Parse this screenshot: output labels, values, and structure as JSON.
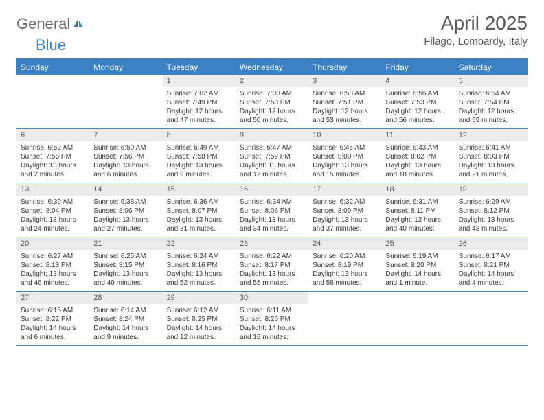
{
  "logo": {
    "text1": "General",
    "text2": "Blue"
  },
  "title": "April 2025",
  "subtitle": "Filago, Lombardy, Italy",
  "colors": {
    "header_bg": "#3b82c4",
    "header_text": "#ffffff",
    "daynum_bg": "#ececec",
    "daynum_text": "#555555",
    "body_text": "#3a3a3a",
    "title_text": "#595959",
    "logo_gray": "#6a6a6a",
    "logo_blue": "#3b82c4"
  },
  "daynames": [
    "Sunday",
    "Monday",
    "Tuesday",
    "Wednesday",
    "Thursday",
    "Friday",
    "Saturday"
  ],
  "weeks": [
    [
      null,
      null,
      {
        "num": "1",
        "sunrise": "Sunrise: 7:02 AM",
        "sunset": "Sunset: 7:49 PM",
        "day1": "Daylight: 12 hours",
        "day2": "and 47 minutes."
      },
      {
        "num": "2",
        "sunrise": "Sunrise: 7:00 AM",
        "sunset": "Sunset: 7:50 PM",
        "day1": "Daylight: 12 hours",
        "day2": "and 50 minutes."
      },
      {
        "num": "3",
        "sunrise": "Sunrise: 6:58 AM",
        "sunset": "Sunset: 7:51 PM",
        "day1": "Daylight: 12 hours",
        "day2": "and 53 minutes."
      },
      {
        "num": "4",
        "sunrise": "Sunrise: 6:56 AM",
        "sunset": "Sunset: 7:53 PM",
        "day1": "Daylight: 12 hours",
        "day2": "and 56 minutes."
      },
      {
        "num": "5",
        "sunrise": "Sunrise: 6:54 AM",
        "sunset": "Sunset: 7:54 PM",
        "day1": "Daylight: 12 hours",
        "day2": "and 59 minutes."
      }
    ],
    [
      {
        "num": "6",
        "sunrise": "Sunrise: 6:52 AM",
        "sunset": "Sunset: 7:55 PM",
        "day1": "Daylight: 13 hours",
        "day2": "and 2 minutes."
      },
      {
        "num": "7",
        "sunrise": "Sunrise: 6:50 AM",
        "sunset": "Sunset: 7:56 PM",
        "day1": "Daylight: 13 hours",
        "day2": "and 6 minutes."
      },
      {
        "num": "8",
        "sunrise": "Sunrise: 6:49 AM",
        "sunset": "Sunset: 7:58 PM",
        "day1": "Daylight: 13 hours",
        "day2": "and 9 minutes."
      },
      {
        "num": "9",
        "sunrise": "Sunrise: 6:47 AM",
        "sunset": "Sunset: 7:59 PM",
        "day1": "Daylight: 13 hours",
        "day2": "and 12 minutes."
      },
      {
        "num": "10",
        "sunrise": "Sunrise: 6:45 AM",
        "sunset": "Sunset: 8:00 PM",
        "day1": "Daylight: 13 hours",
        "day2": "and 15 minutes."
      },
      {
        "num": "11",
        "sunrise": "Sunrise: 6:43 AM",
        "sunset": "Sunset: 8:02 PM",
        "day1": "Daylight: 13 hours",
        "day2": "and 18 minutes."
      },
      {
        "num": "12",
        "sunrise": "Sunrise: 6:41 AM",
        "sunset": "Sunset: 8:03 PM",
        "day1": "Daylight: 13 hours",
        "day2": "and 21 minutes."
      }
    ],
    [
      {
        "num": "13",
        "sunrise": "Sunrise: 6:39 AM",
        "sunset": "Sunset: 8:04 PM",
        "day1": "Daylight: 13 hours",
        "day2": "and 24 minutes."
      },
      {
        "num": "14",
        "sunrise": "Sunrise: 6:38 AM",
        "sunset": "Sunset: 8:06 PM",
        "day1": "Daylight: 13 hours",
        "day2": "and 27 minutes."
      },
      {
        "num": "15",
        "sunrise": "Sunrise: 6:36 AM",
        "sunset": "Sunset: 8:07 PM",
        "day1": "Daylight: 13 hours",
        "day2": "and 31 minutes."
      },
      {
        "num": "16",
        "sunrise": "Sunrise: 6:34 AM",
        "sunset": "Sunset: 8:08 PM",
        "day1": "Daylight: 13 hours",
        "day2": "and 34 minutes."
      },
      {
        "num": "17",
        "sunrise": "Sunrise: 6:32 AM",
        "sunset": "Sunset: 8:09 PM",
        "day1": "Daylight: 13 hours",
        "day2": "and 37 minutes."
      },
      {
        "num": "18",
        "sunrise": "Sunrise: 6:31 AM",
        "sunset": "Sunset: 8:11 PM",
        "day1": "Daylight: 13 hours",
        "day2": "and 40 minutes."
      },
      {
        "num": "19",
        "sunrise": "Sunrise: 6:29 AM",
        "sunset": "Sunset: 8:12 PM",
        "day1": "Daylight: 13 hours",
        "day2": "and 43 minutes."
      }
    ],
    [
      {
        "num": "20",
        "sunrise": "Sunrise: 6:27 AM",
        "sunset": "Sunset: 8:13 PM",
        "day1": "Daylight: 13 hours",
        "day2": "and 46 minutes."
      },
      {
        "num": "21",
        "sunrise": "Sunrise: 6:25 AM",
        "sunset": "Sunset: 8:15 PM",
        "day1": "Daylight: 13 hours",
        "day2": "and 49 minutes."
      },
      {
        "num": "22",
        "sunrise": "Sunrise: 6:24 AM",
        "sunset": "Sunset: 8:16 PM",
        "day1": "Daylight: 13 hours",
        "day2": "and 52 minutes."
      },
      {
        "num": "23",
        "sunrise": "Sunrise: 6:22 AM",
        "sunset": "Sunset: 8:17 PM",
        "day1": "Daylight: 13 hours",
        "day2": "and 55 minutes."
      },
      {
        "num": "24",
        "sunrise": "Sunrise: 6:20 AM",
        "sunset": "Sunset: 8:19 PM",
        "day1": "Daylight: 13 hours",
        "day2": "and 58 minutes."
      },
      {
        "num": "25",
        "sunrise": "Sunrise: 6:19 AM",
        "sunset": "Sunset: 8:20 PM",
        "day1": "Daylight: 14 hours",
        "day2": "and 1 minute."
      },
      {
        "num": "26",
        "sunrise": "Sunrise: 6:17 AM",
        "sunset": "Sunset: 8:21 PM",
        "day1": "Daylight: 14 hours",
        "day2": "and 4 minutes."
      }
    ],
    [
      {
        "num": "27",
        "sunrise": "Sunrise: 6:15 AM",
        "sunset": "Sunset: 8:22 PM",
        "day1": "Daylight: 14 hours",
        "day2": "and 6 minutes."
      },
      {
        "num": "28",
        "sunrise": "Sunrise: 6:14 AM",
        "sunset": "Sunset: 8:24 PM",
        "day1": "Daylight: 14 hours",
        "day2": "and 9 minutes."
      },
      {
        "num": "29",
        "sunrise": "Sunrise: 6:12 AM",
        "sunset": "Sunset: 8:25 PM",
        "day1": "Daylight: 14 hours",
        "day2": "and 12 minutes."
      },
      {
        "num": "30",
        "sunrise": "Sunrise: 6:11 AM",
        "sunset": "Sunset: 8:26 PM",
        "day1": "Daylight: 14 hours",
        "day2": "and 15 minutes."
      },
      null,
      null,
      null
    ]
  ]
}
